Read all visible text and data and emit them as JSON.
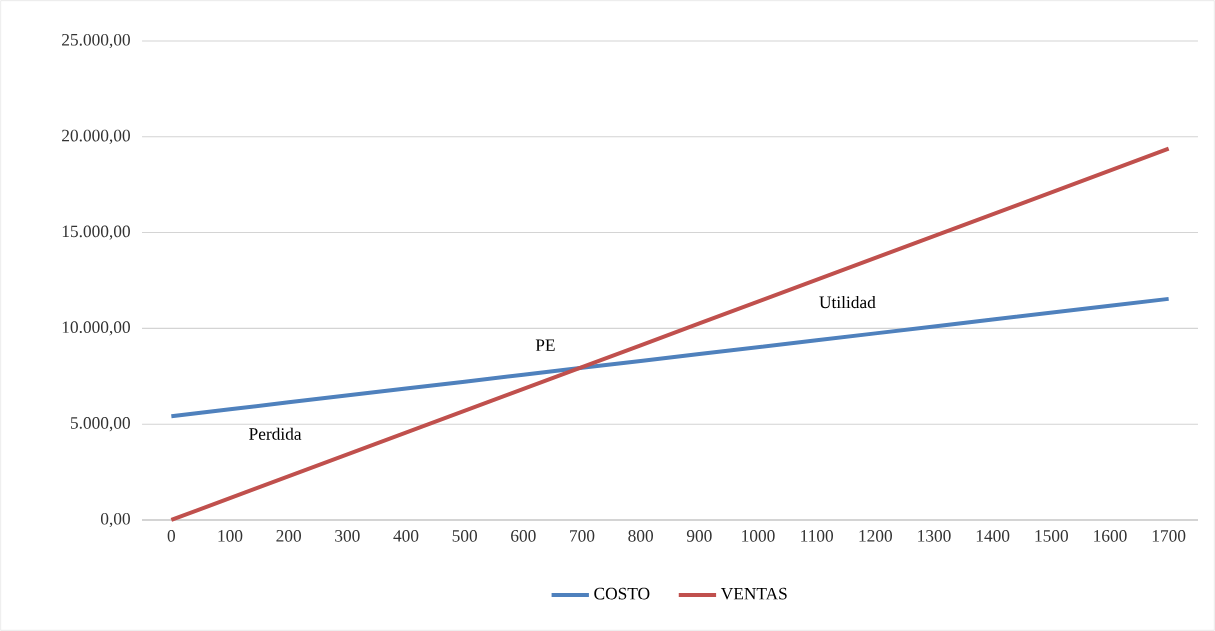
{
  "chart_data": {
    "type": "line",
    "categories": [
      "0",
      "100",
      "200",
      "300",
      "400",
      "500",
      "600",
      "700",
      "800",
      "900",
      "1000",
      "1100",
      "1200",
      "1300",
      "1400",
      "1500",
      "1600",
      "1700"
    ],
    "series": [
      {
        "name": "COSTO",
        "color": "#4f81bd",
        "values": [
          5420,
          5780,
          6140,
          6500,
          6860,
          7220,
          7580,
          7940,
          8300,
          8660,
          9020,
          9380,
          9740,
          10100,
          10460,
          10820,
          11180,
          11540
        ]
      },
      {
        "name": "VENTAS",
        "color": "#c0504d",
        "values": [
          0,
          1140,
          2280,
          3420,
          4560,
          5700,
          6840,
          7980,
          9120,
          10260,
          11400,
          12540,
          13680,
          14820,
          15960,
          17100,
          18240,
          19380
        ]
      }
    ],
    "ylim": [
      0,
      25000
    ],
    "yticks": [
      {
        "value": 0,
        "label": "0,00"
      },
      {
        "value": 5000,
        "label": "5.000,00"
      },
      {
        "value": 10000,
        "label": "10.000,00"
      },
      {
        "value": 15000,
        "label": "15.000,00"
      },
      {
        "value": 20000,
        "label": "20.000,00"
      },
      {
        "value": 25000,
        "label": "25.000,00"
      }
    ],
    "annotations": [
      "Perdida",
      "PE",
      "Utilidad"
    ],
    "grid": "y",
    "legend": "bottom",
    "marker": "none",
    "line_style": "solid"
  }
}
